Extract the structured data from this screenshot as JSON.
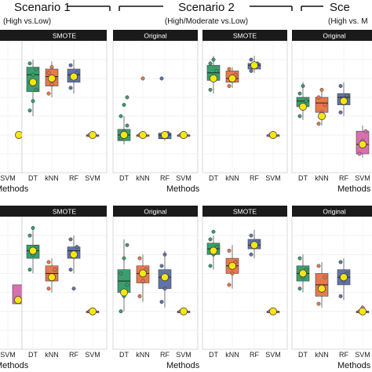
{
  "chart_data": {
    "type": "box",
    "scenarios": [
      {
        "title": "Scenario 1",
        "subtitle": "(High vs.Low)"
      },
      {
        "title": "Scenario 2",
        "subtitle": "(High/Moderate vs.Low)"
      },
      {
        "title": "Sce",
        "subtitle": "(High vs. M"
      }
    ],
    "categories": [
      "DT",
      "kNN",
      "RF",
      "SVM"
    ],
    "category_colors": [
      "#3a9e6e",
      "#e8784e",
      "#6173a8",
      "#d86fb0"
    ],
    "marker_color": "#f5e60f",
    "xlabel": "Methods",
    "rows": [
      {
        "panels": [
          {
            "strip": "SMOTE",
            "boxes": [
              {
                "q1": 0.73,
                "med": 0.82,
                "q3": 0.86,
                "lo": 0.6,
                "hi": 0.9,
                "pts": [
                  0.63,
                  0.68,
                  0.74,
                  0.78,
                  0.82,
                  0.85,
                  0.88
                ],
                "mean": 0.78
              },
              {
                "q1": 0.76,
                "med": 0.81,
                "q3": 0.85,
                "lo": 0.7,
                "hi": 0.89,
                "pts": [
                  0.72,
                  0.77,
                  0.8,
                  0.83,
                  0.86
                ],
                "mean": 0.8
              },
              {
                "q1": 0.78,
                "med": 0.82,
                "q3": 0.85,
                "lo": 0.72,
                "hi": 0.9,
                "pts": [
                  0.75,
                  0.8,
                  0.83,
                  0.87
                ],
                "mean": 0.81
              },
              {
                "q1": 0.5,
                "med": 0.5,
                "q3": 0.5,
                "lo": 0.5,
                "hi": 0.5,
                "pts": [
                  0.5
                ],
                "mean": 0.5
              }
            ]
          },
          {
            "strip": "Original",
            "boxes": [
              {
                "q1": 0.47,
                "med": 0.5,
                "q3": 0.53,
                "lo": 0.45,
                "hi": 0.6,
                "pts": [
                  0.48,
                  0.52,
                  0.55,
                  0.6,
                  0.66,
                  0.7
                ],
                "mean": 0.5
              },
              {
                "q1": 0.5,
                "med": 0.5,
                "q3": 0.5,
                "lo": 0.5,
                "hi": 0.5,
                "pts": [
                  0.5,
                  0.8
                ],
                "mean": 0.5
              },
              {
                "q1": 0.48,
                "med": 0.5,
                "q3": 0.51,
                "lo": 0.47,
                "hi": 0.52,
                "pts": [
                  0.49,
                  0.5,
                  0.51,
                  0.8
                ],
                "mean": 0.5
              },
              {
                "q1": 0.5,
                "med": 0.5,
                "q3": 0.5,
                "lo": 0.5,
                "hi": 0.5,
                "pts": [
                  0.5
                ],
                "mean": 0.5
              }
            ]
          },
          {
            "strip": "SMOTE",
            "boxes": [
              {
                "q1": 0.79,
                "med": 0.83,
                "q3": 0.87,
                "lo": 0.72,
                "hi": 0.92,
                "pts": [
                  0.74,
                  0.8,
                  0.84,
                  0.88,
                  0.9
                ],
                "mean": 0.8
              },
              {
                "q1": 0.78,
                "med": 0.8,
                "q3": 0.84,
                "lo": 0.75,
                "hi": 0.86,
                "pts": [
                  0.76,
                  0.79,
                  0.82,
                  0.85
                ],
                "mean": 0.8
              },
              {
                "q1": 0.85,
                "med": 0.87,
                "q3": 0.88,
                "lo": 0.83,
                "hi": 0.92,
                "pts": [
                  0.84,
                  0.86,
                  0.88,
                  0.9
                ],
                "mean": 0.87
              },
              {
                "q1": 0.5,
                "med": 0.5,
                "q3": 0.5,
                "lo": 0.5,
                "hi": 0.5,
                "pts": [
                  0.5
                ],
                "mean": 0.5
              }
            ]
          },
          {
            "strip": "Original",
            "boxes": [
              {
                "q1": 0.65,
                "med": 0.68,
                "q3": 0.7,
                "lo": 0.58,
                "hi": 0.78,
                "pts": [
                  0.6,
                  0.64,
                  0.68,
                  0.72,
                  0.76
                ],
                "mean": 0.65
              },
              {
                "q1": 0.62,
                "med": 0.67,
                "q3": 0.7,
                "lo": 0.55,
                "hi": 0.75,
                "pts": [
                  0.56,
                  0.62,
                  0.66,
                  0.7,
                  0.74
                ],
                "mean": 0.6
              },
              {
                "q1": 0.66,
                "med": 0.7,
                "q3": 0.72,
                "lo": 0.6,
                "hi": 0.78,
                "pts": [
                  0.62,
                  0.67,
                  0.71,
                  0.76
                ],
                "mean": 0.68
              },
              {
                "q1": 0.4,
                "med": 0.45,
                "q3": 0.52,
                "lo": 0.38,
                "hi": 0.55,
                "pts": [
                  0.4,
                  0.47,
                  0.52
                ],
                "mean": 0.45
              }
            ]
          }
        ]
      },
      {
        "panels": [
          {
            "strip": "SMOTE",
            "boxes": [
              {
                "q1": 0.78,
                "med": 0.82,
                "q3": 0.85,
                "lo": 0.7,
                "hi": 0.95,
                "pts": [
                  0.72,
                  0.8,
                  0.84,
                  0.9,
                  0.94
                ],
                "mean": 0.82
              },
              {
                "q1": 0.66,
                "med": 0.7,
                "q3": 0.74,
                "lo": 0.6,
                "hi": 0.78,
                "pts": [
                  0.62,
                  0.68,
                  0.72,
                  0.76
                ],
                "mean": 0.68
              },
              {
                "q1": 0.78,
                "med": 0.82,
                "q3": 0.84,
                "lo": 0.7,
                "hi": 0.9,
                "pts": [
                  0.72,
                  0.8,
                  0.84,
                  0.88,
                  0.62
                ],
                "mean": 0.8
              },
              {
                "q1": 0.5,
                "med": 0.5,
                "q3": 0.5,
                "lo": 0.5,
                "hi": 0.5,
                "pts": [
                  0.5
                ],
                "mean": 0.5
              }
            ]
          },
          {
            "strip": "Original",
            "boxes": [
              {
                "q1": 0.6,
                "med": 0.66,
                "q3": 0.72,
                "lo": 0.5,
                "hi": 0.88,
                "pts": [
                  0.5,
                  0.58,
                  0.64,
                  0.7,
                  0.78,
                  0.85
                ],
                "mean": 0.6
              },
              {
                "q1": 0.65,
                "med": 0.7,
                "q3": 0.74,
                "lo": 0.55,
                "hi": 0.8,
                "pts": [
                  0.58,
                  0.66,
                  0.72,
                  0.78
                ],
                "mean": 0.7
              },
              {
                "q1": 0.62,
                "med": 0.68,
                "q3": 0.72,
                "lo": 0.52,
                "hi": 0.82,
                "pts": [
                  0.55,
                  0.62,
                  0.68,
                  0.74,
                  0.8
                ],
                "mean": 0.68
              },
              {
                "q1": 0.5,
                "med": 0.5,
                "q3": 0.5,
                "lo": 0.5,
                "hi": 0.5,
                "pts": [
                  0.5
                ],
                "mean": 0.5
              }
            ]
          },
          {
            "strip": "SMOTE",
            "boxes": [
              {
                "q1": 0.8,
                "med": 0.83,
                "q3": 0.86,
                "lo": 0.72,
                "hi": 0.9,
                "pts": [
                  0.74,
                  0.8,
                  0.84,
                  0.88,
                  0.92
                ],
                "mean": 0.82
              },
              {
                "q1": 0.7,
                "med": 0.74,
                "q3": 0.78,
                "lo": 0.62,
                "hi": 0.85,
                "pts": [
                  0.64,
                  0.7,
                  0.76,
                  0.82
                ],
                "mean": 0.74
              },
              {
                "q1": 0.83,
                "med": 0.85,
                "q3": 0.88,
                "lo": 0.78,
                "hi": 0.93,
                "pts": [
                  0.8,
                  0.84,
                  0.87,
                  0.9
                ],
                "mean": 0.85
              },
              {
                "q1": 0.5,
                "med": 0.5,
                "q3": 0.5,
                "lo": 0.5,
                "hi": 0.5,
                "pts": [
                  0.5
                ],
                "mean": 0.5
              }
            ]
          },
          {
            "strip": "Original",
            "boxes": [
              {
                "q1": 0.66,
                "med": 0.7,
                "q3": 0.74,
                "lo": 0.6,
                "hi": 0.8,
                "pts": [
                  0.62,
                  0.68,
                  0.72,
                  0.78
                ],
                "mean": 0.7
              },
              {
                "q1": 0.58,
                "med": 0.64,
                "q3": 0.7,
                "lo": 0.52,
                "hi": 0.76,
                "pts": [
                  0.54,
                  0.62,
                  0.68,
                  0.74
                ],
                "mean": 0.62
              },
              {
                "q1": 0.64,
                "med": 0.68,
                "q3": 0.72,
                "lo": 0.56,
                "hi": 0.78,
                "pts": [
                  0.58,
                  0.66,
                  0.7,
                  0.76
                ],
                "mean": 0.68
              },
              {
                "q1": 0.5,
                "med": 0.5,
                "q3": 0.5,
                "lo": 0.5,
                "hi": 0.5,
                "pts": [
                  0.5,
                  0.52
                ],
                "mean": 0.5
              }
            ]
          }
        ]
      }
    ]
  }
}
